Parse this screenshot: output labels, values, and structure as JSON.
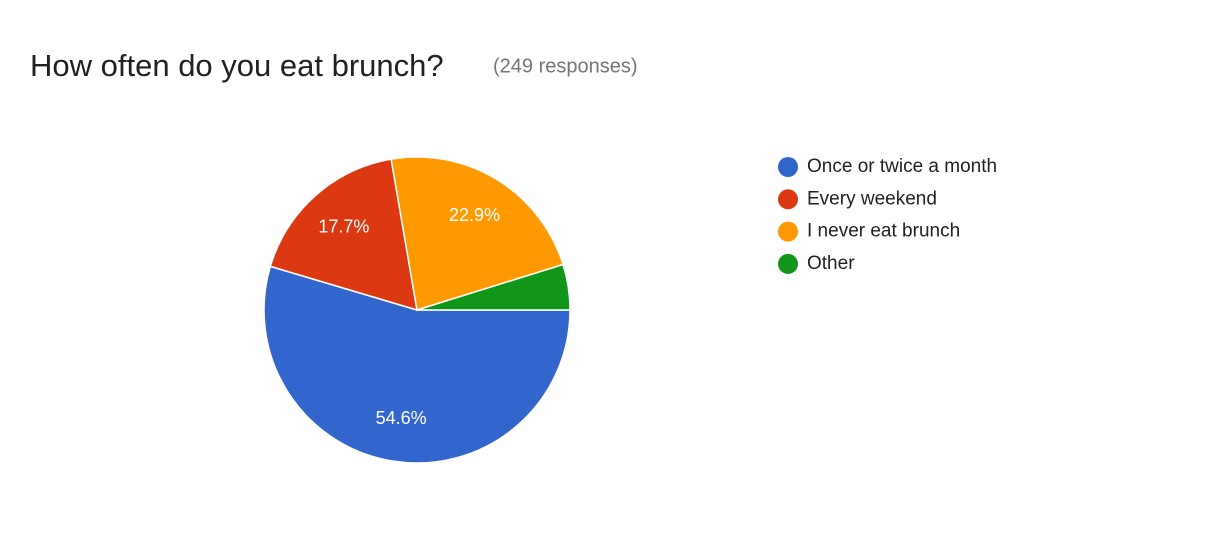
{
  "chart_data": {
    "type": "pie",
    "title": "How often do you eat brunch?",
    "subtitle": "(249 responses)",
    "categories": [
      "Once or twice a month",
      "Every weekend",
      "I never eat brunch",
      "Other"
    ],
    "values": [
      54.6,
      17.7,
      22.9,
      4.8
    ],
    "value_labels": [
      "54.6%",
      "17.7%",
      "22.9%",
      null
    ],
    "colors": [
      "#3366cc",
      "#dc3912",
      "#ff9900",
      "#109618"
    ],
    "legend": "right"
  }
}
